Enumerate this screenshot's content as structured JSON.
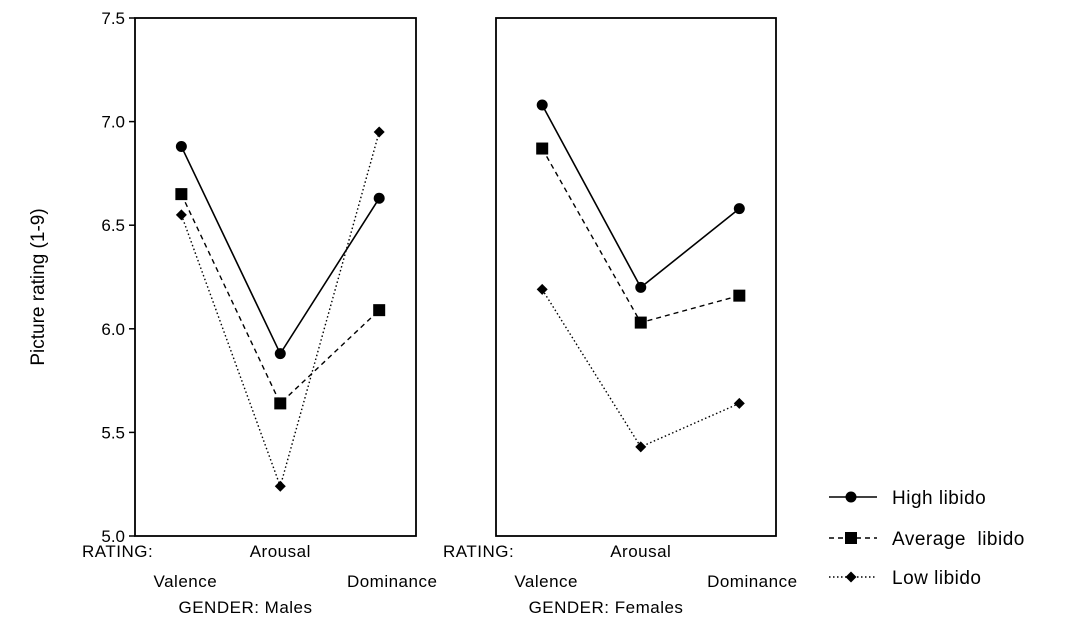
{
  "chart_data": {
    "type": "line",
    "ylabel": "Picture rating (1-9)",
    "ylim": [
      5.0,
      7.5
    ],
    "yticks": [
      "7.5",
      "7.0",
      "6.5",
      "6.0",
      "5.5",
      "5.0"
    ],
    "grid": false,
    "legend_position": "right",
    "categories": [
      "Valence",
      "Arousal",
      "Dominance"
    ],
    "category_prefix": "RATING:",
    "panels": [
      {
        "label": "GENDER: Males",
        "series": [
          {
            "name": "High libido",
            "marker": "circle",
            "line": "solid",
            "values": [
              6.88,
              5.88,
              6.63
            ]
          },
          {
            "name": "Average libido",
            "marker": "square",
            "line": "dashed",
            "values": [
              6.65,
              5.64,
              6.09
            ]
          },
          {
            "name": "Low libido",
            "marker": "diamond",
            "line": "dotted",
            "values": [
              6.55,
              5.24,
              6.95
            ]
          }
        ]
      },
      {
        "label": "GENDER: Females",
        "series": [
          {
            "name": "High libido",
            "marker": "circle",
            "line": "solid",
            "values": [
              7.08,
              6.2,
              6.58
            ]
          },
          {
            "name": "Average libido",
            "marker": "square",
            "line": "dashed",
            "values": [
              6.87,
              6.03,
              6.16
            ]
          },
          {
            "name": "Low libido",
            "marker": "diamond",
            "line": "dotted",
            "values": [
              6.19,
              5.43,
              5.64
            ]
          }
        ]
      }
    ],
    "legend": [
      {
        "name": "High libido",
        "marker": "circle",
        "line": "solid"
      },
      {
        "name": "Average  libido",
        "marker": "square",
        "line": "dashed"
      },
      {
        "name": "Low libido",
        "marker": "diamond",
        "line": "dotted"
      }
    ]
  }
}
